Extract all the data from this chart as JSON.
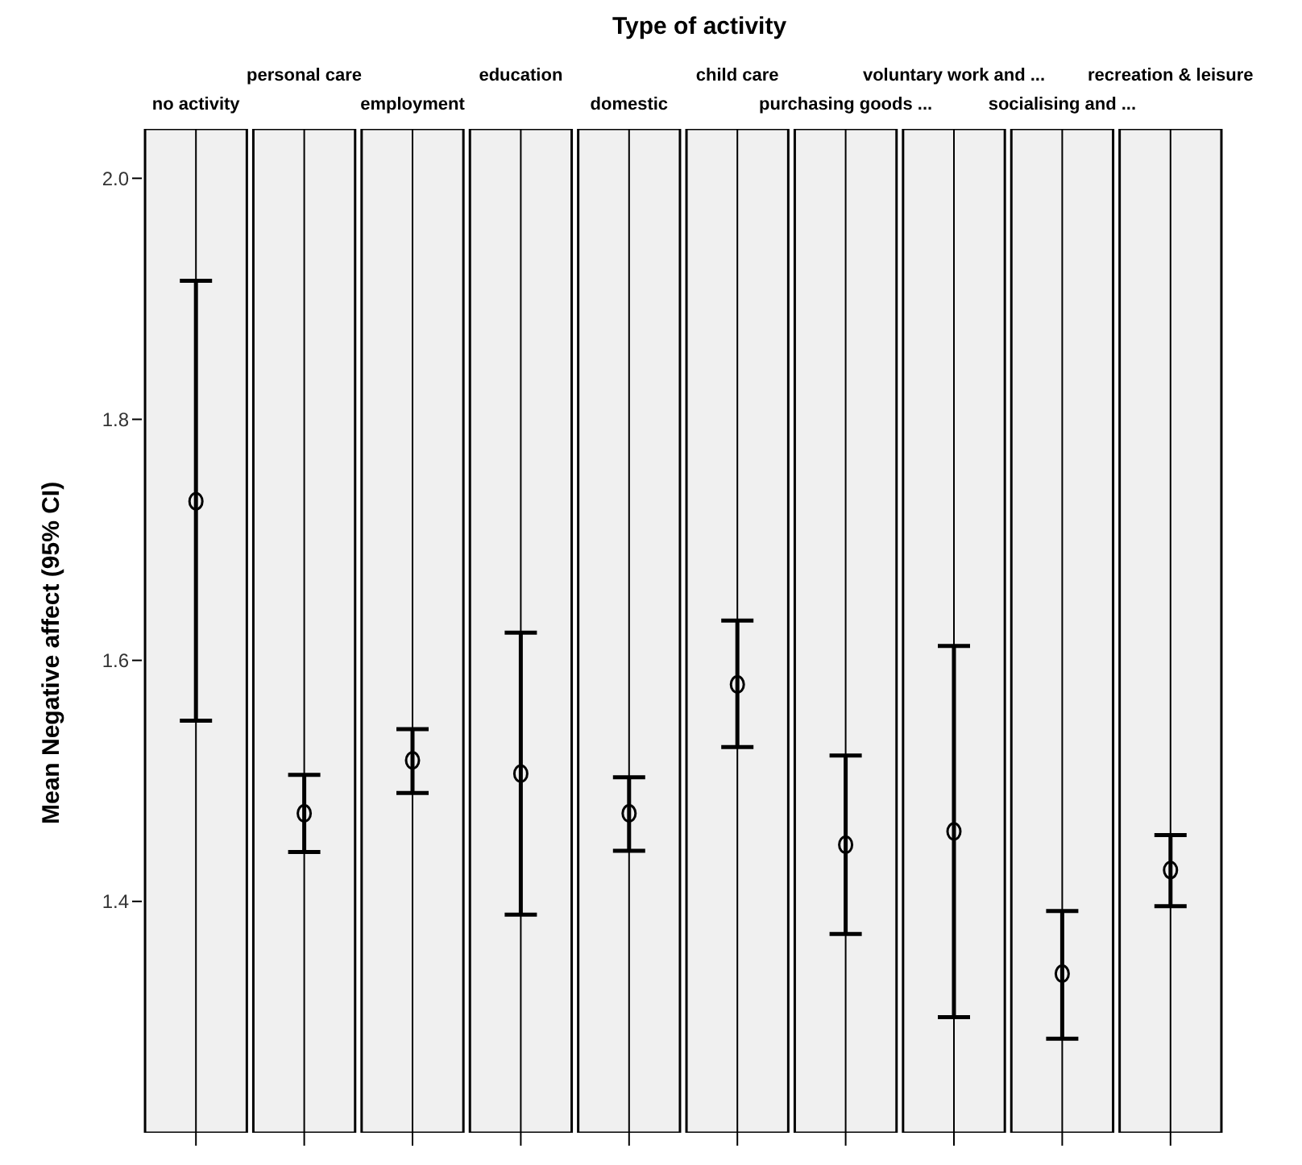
{
  "chart_data": {
    "type": "scatter",
    "xlabel": "Type of activity",
    "ylabel": "Mean Negative affect (95% CI)",
    "categories": [
      "no activity",
      "personal care",
      "employment",
      "education",
      "domestic",
      "child care",
      "purchasing goods ...",
      "voluntary work and ...",
      "socialising and ...",
      "recreation & leisure"
    ],
    "values": [
      1.732,
      1.473,
      1.517,
      1.506,
      1.473,
      1.58,
      1.447,
      1.458,
      1.34,
      1.426
    ],
    "errors": [
      [
        1.55,
        1.915
      ],
      [
        1.441,
        1.505
      ],
      [
        1.49,
        1.543
      ],
      [
        1.389,
        1.623
      ],
      [
        1.442,
        1.503
      ],
      [
        1.528,
        1.633
      ],
      [
        1.373,
        1.521
      ],
      [
        1.304,
        1.612
      ],
      [
        1.286,
        1.392
      ],
      [
        1.396,
        1.455
      ]
    ],
    "color": "#000000",
    "marker": "circle",
    "grid": "x",
    "ylim": [
      1.208,
      2.041
    ],
    "yticks": [
      1.4,
      1.6,
      1.8,
      {
        "value": 2,
        "label": "2.0"
      }
    ]
  }
}
